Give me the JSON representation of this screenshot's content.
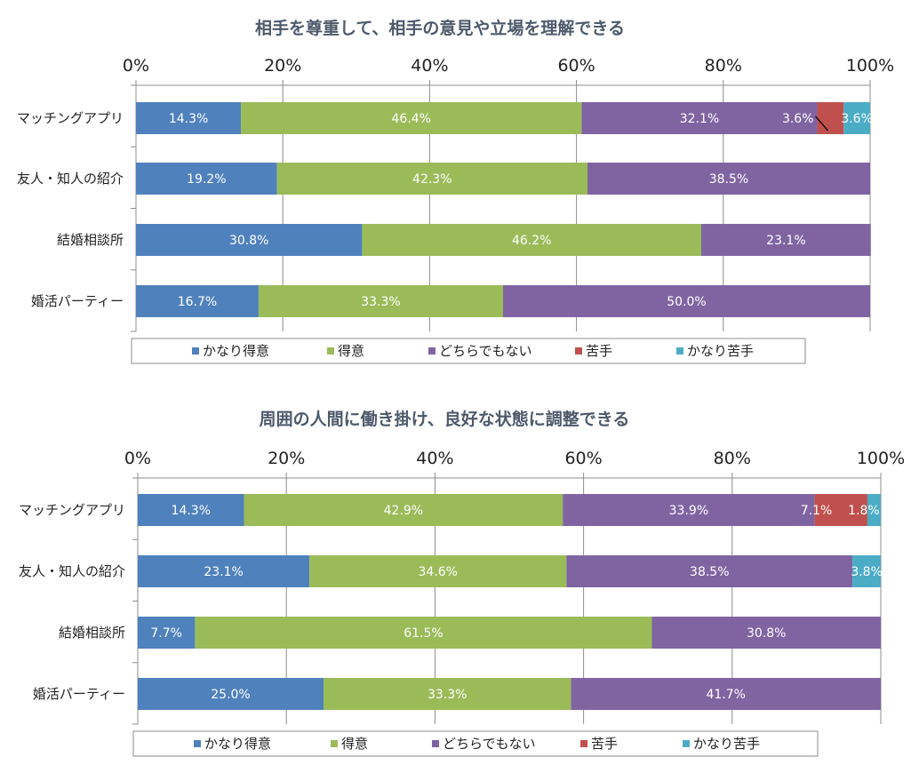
{
  "colors": {
    "strong": "#4f81bd",
    "good": "#9bbb59",
    "neutral": "#8064a2",
    "weak": "#c0504d",
    "very_weak": "#4bacc6"
  },
  "chart_data": [
    {
      "type": "bar",
      "orientation": "horizontal",
      "stacked": true,
      "title": "相手を尊重して、相手の意見や立場を理解できる",
      "xlim": [
        0,
        100
      ],
      "x_ticks": [
        "0%",
        "20%",
        "40%",
        "60%",
        "80%",
        "100%"
      ],
      "grid": true,
      "legend_position": "bottom",
      "categories": [
        "マッチングアプリ",
        "友人・知人の紹介",
        "結婚相談所",
        "婚活パーティー"
      ],
      "series": [
        {
          "name": "かなり得意",
          "values": [
            14.3,
            19.2,
            30.8,
            16.7
          ],
          "labels": [
            "14.3%",
            "19.2%",
            "30.8%",
            "16.7%"
          ]
        },
        {
          "name": "得意",
          "values": [
            46.4,
            42.3,
            46.2,
            33.3
          ],
          "labels": [
            "46.4%",
            "42.3%",
            "46.2%",
            "33.3%"
          ]
        },
        {
          "name": "どちらでもない",
          "values": [
            32.1,
            38.5,
            23.1,
            50.0
          ],
          "labels": [
            "32.1%",
            "38.5%",
            "23.1%",
            "50.0%"
          ]
        },
        {
          "name": "苦手",
          "values": [
            3.6,
            0,
            0,
            0
          ],
          "labels": [
            "3.6%",
            "",
            "",
            ""
          ]
        },
        {
          "name": "かなり苦手",
          "values": [
            3.6,
            0,
            0,
            0
          ],
          "labels": [
            "3.6%",
            "",
            "",
            ""
          ]
        }
      ]
    },
    {
      "type": "bar",
      "orientation": "horizontal",
      "stacked": true,
      "title": "周囲の人間に働き掛け、良好な状態に調整できる",
      "xlim": [
        0,
        100
      ],
      "x_ticks": [
        "0%",
        "20%",
        "40%",
        "60%",
        "80%",
        "100%"
      ],
      "grid": true,
      "legend_position": "bottom",
      "categories": [
        "マッチングアプリ",
        "友人・知人の紹介",
        "結婚相談所",
        "婚活パーティー"
      ],
      "series": [
        {
          "name": "かなり得意",
          "values": [
            14.3,
            23.1,
            7.7,
            25.0
          ],
          "labels": [
            "14.3%",
            "23.1%",
            "7.7%",
            "25.0%"
          ]
        },
        {
          "name": "得意",
          "values": [
            42.9,
            34.6,
            61.5,
            33.3
          ],
          "labels": [
            "42.9%",
            "34.6%",
            "61.5%",
            "33.3%"
          ]
        },
        {
          "name": "どちらでもない",
          "values": [
            33.9,
            38.5,
            30.8,
            41.7
          ],
          "labels": [
            "33.9%",
            "38.5%",
            "30.8%",
            "41.7%"
          ]
        },
        {
          "name": "苦手",
          "values": [
            7.1,
            0,
            0,
            0
          ],
          "labels": [
            "7.1%",
            "",
            "",
            ""
          ]
        },
        {
          "name": "かなり苦手",
          "values": [
            1.8,
            3.8,
            0,
            0
          ],
          "labels": [
            "1.8%",
            "3.8%",
            "",
            ""
          ]
        }
      ]
    }
  ]
}
